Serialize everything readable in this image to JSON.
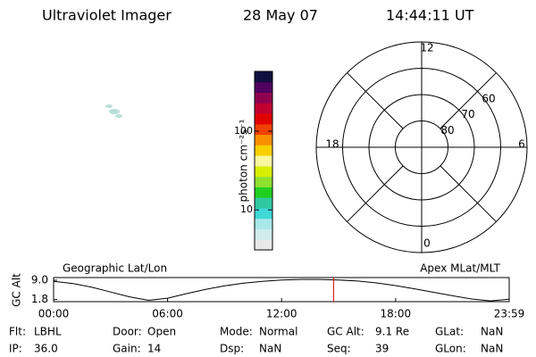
{
  "header": {
    "title": "Ultraviolet Imager",
    "date": "28 May 07",
    "time": "14:44:11 UT"
  },
  "chart_data": [
    {
      "type": "colorbar",
      "label": "photon cm⁻²s⁻¹",
      "log": true,
      "ylim": [
        3.1,
        575
      ],
      "yticks": [
        10,
        100
      ],
      "colors": [
        "#e8e8e8",
        "#d0ecec",
        "#a8e8e8",
        "#40d8d8",
        "#30c8a0",
        "#20d020",
        "#90e030",
        "#d8f000",
        "#f8f8a0",
        "#f8d000",
        "#f89000",
        "#f04000",
        "#e00000",
        "#c00030",
        "#900050",
        "#500060",
        "#101040"
      ]
    },
    {
      "type": "polar",
      "rlim": [
        90,
        50
      ],
      "rticks": [
        80,
        70,
        60
      ],
      "thetaticks": [
        {
          "value": 12,
          "label": "12"
        },
        {
          "value": 6,
          "label": "6"
        },
        {
          "value": 18,
          "label": "18"
        },
        {
          "value": 0,
          "label": "0"
        }
      ]
    },
    {
      "type": "line",
      "ylabel": "GC Alt",
      "left_label": "Geographic Lat/Lon",
      "right_label": "Apex MLat/MLT",
      "x": [
        0,
        1,
        2,
        3,
        4,
        5,
        6,
        7,
        8,
        9,
        10,
        11,
        12,
        13,
        14,
        15,
        16,
        17,
        18,
        19,
        20,
        21,
        22,
        23,
        23.98
      ],
      "values": [
        8.6,
        7.8,
        6.4,
        4.6,
        2.8,
        1.5,
        2.3,
        4.0,
        5.6,
        6.9,
        7.9,
        8.6,
        9.1,
        9.3,
        9.3,
        9.1,
        8.7,
        8.0,
        7.0,
        5.8,
        4.5,
        3.2,
        2.0,
        1.3,
        1.9
      ],
      "color": "#000000",
      "marker_x": 14.736,
      "marker_color": "#e00000",
      "xlim": [
        0,
        23.98
      ],
      "ylim": [
        1,
        10
      ],
      "xticks": [
        {
          "value": 0,
          "label": "00:00"
        },
        {
          "value": 6,
          "label": "06:00"
        },
        {
          "value": 12,
          "label": "12:00"
        },
        {
          "value": 18,
          "label": "18:00"
        },
        {
          "value": 23.98,
          "label": "23:59"
        }
      ],
      "yticks": [
        {
          "value": 9.0,
          "label": "9.0"
        },
        1.8
      ]
    }
  ],
  "footer": {
    "rows": [
      [
        [
          "Flt:",
          "LBHL"
        ],
        [
          "Door:",
          "Open"
        ],
        [
          "Mode:",
          "Normal"
        ],
        [
          "GC Alt:",
          "9.1 Re"
        ],
        [
          "GLat:",
          "NaN"
        ]
      ],
      [
        [
          "IP:",
          "36.0"
        ],
        [
          "Gain:",
          "14"
        ],
        [
          "Dsp:",
          "NaN"
        ],
        [
          "Seq:",
          "39"
        ],
        [
          "GLon:",
          "NaN"
        ]
      ]
    ]
  }
}
